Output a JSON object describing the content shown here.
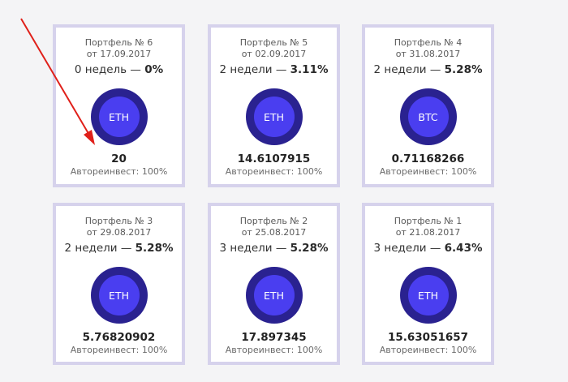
{
  "portfolios": [
    {
      "title": "Портфель № 6",
      "date": "от 17.09.2017",
      "period": "0 недель",
      "dash": "—",
      "percent": "0%",
      "coin": "ETH",
      "amount": "20",
      "reinvest": "Автореинвест: 100%"
    },
    {
      "title": "Портфель № 5",
      "date": "от 02.09.2017",
      "period": "2 недели",
      "dash": "—",
      "percent": "3.11%",
      "coin": "ETH",
      "amount": "14.6107915",
      "reinvest": "Автореинвест: 100%"
    },
    {
      "title": "Портфель № 4",
      "date": "от 31.08.2017",
      "period": "2 недели",
      "dash": "—",
      "percent": "5.28%",
      "coin": "BTC",
      "amount": "0.71168266",
      "reinvest": "Автореинвест: 100%"
    },
    {
      "title": "Портфель № 3",
      "date": "от 29.08.2017",
      "period": "2 недели",
      "dash": "—",
      "percent": "5.28%",
      "coin": "ETH",
      "amount": "5.76820902",
      "reinvest": "Автореинвест: 100%"
    },
    {
      "title": "Портфель № 2",
      "date": "от 25.08.2017",
      "period": "3 недели",
      "dash": "—",
      "percent": "5.28%",
      "coin": "ETH",
      "amount": "17.897345",
      "reinvest": "Автореинвест: 100%"
    },
    {
      "title": "Портфель № 1",
      "date": "от 21.08.2017",
      "period": "3 недели",
      "dash": "—",
      "percent": "6.43%",
      "coin": "ETH",
      "amount": "15.63051657",
      "reinvest": "Автореинвест: 100%"
    }
  ],
  "colors": {
    "card_border": "#d6d2ec",
    "coin_outer": "#2a2290",
    "coin_inner": "#4a3ef0",
    "annotation_arrow": "#e0201a",
    "background": "#f4f4f6"
  }
}
